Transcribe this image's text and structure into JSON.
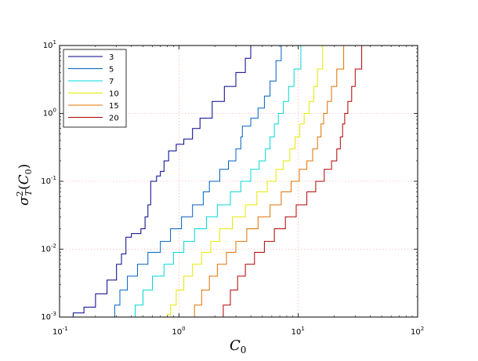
{
  "chart_data": {
    "type": "line",
    "xscale": "log",
    "yscale": "log",
    "xlim": [
      0.1,
      100
    ],
    "ylim": [
      0.001,
      10
    ],
    "xlabel_base": "C",
    "xlabel_sub": "0",
    "ylabel_html": "σ²T(C0)",
    "ylabel_sigma": "σ",
    "ylabel_sup": "2",
    "ylabel_sub": "T",
    "ylabel_arg_base": "C",
    "ylabel_arg_sub": "0",
    "x_ticks": [
      {
        "value": 0.1,
        "base": "10",
        "exp": "-1"
      },
      {
        "value": 1,
        "base": "10",
        "exp": "0"
      },
      {
        "value": 10,
        "base": "10",
        "exp": "1"
      },
      {
        "value": 100,
        "base": "10",
        "exp": "2"
      }
    ],
    "y_ticks": [
      {
        "value": 0.001,
        "base": "10",
        "exp": "-3"
      },
      {
        "value": 0.01,
        "base": "10",
        "exp": "-2"
      },
      {
        "value": 0.1,
        "base": "10",
        "exp": "-1"
      },
      {
        "value": 1,
        "base": "10",
        "exp": "0"
      },
      {
        "value": 10,
        "base": "10",
        "exp": "1"
      }
    ],
    "grid": true,
    "legend_position": "top-left",
    "series": [
      {
        "name": "3",
        "color": "#00008b",
        "points": [
          [
            0.11,
            0.001
          ],
          [
            0.13,
            0.00115
          ],
          [
            0.16,
            0.0014
          ],
          [
            0.2,
            0.0022
          ],
          [
            0.25,
            0.0035
          ],
          [
            0.3,
            0.006
          ],
          [
            0.33,
            0.0085
          ],
          [
            0.36,
            0.01
          ],
          [
            0.36,
            0.015
          ],
          [
            0.4,
            0.017
          ],
          [
            0.48,
            0.02
          ],
          [
            0.52,
            0.03
          ],
          [
            0.55,
            0.045
          ],
          [
            0.58,
            0.1
          ],
          [
            0.65,
            0.12
          ],
          [
            0.7,
            0.14
          ],
          [
            0.75,
            0.2
          ],
          [
            0.82,
            0.28
          ],
          [
            0.95,
            0.35
          ],
          [
            1.1,
            0.42
          ],
          [
            1.3,
            0.6
          ],
          [
            1.5,
            0.85
          ],
          [
            1.9,
            1.5
          ],
          [
            2.4,
            2.5
          ],
          [
            3,
            4
          ],
          [
            3.6,
            6.5
          ],
          [
            4,
            10
          ]
        ]
      },
      {
        "name": "5",
        "color": "#0060c0",
        "points": [
          [
            0.27,
            0.001
          ],
          [
            0.29,
            0.0015
          ],
          [
            0.32,
            0.0025
          ],
          [
            0.37,
            0.004
          ],
          [
            0.45,
            0.006
          ],
          [
            0.55,
            0.009
          ],
          [
            0.7,
            0.013
          ],
          [
            0.85,
            0.02
          ],
          [
            1.05,
            0.03
          ],
          [
            1.3,
            0.045
          ],
          [
            1.6,
            0.07
          ],
          [
            1.8,
            0.1
          ],
          [
            2.2,
            0.15
          ],
          [
            2.6,
            0.2
          ],
          [
            3,
            0.3
          ],
          [
            3.3,
            0.45
          ],
          [
            3.4,
            0.65
          ],
          [
            4,
            0.85
          ],
          [
            4.6,
            1.2
          ],
          [
            5.2,
            1.8
          ],
          [
            5.8,
            3
          ],
          [
            6.5,
            6
          ],
          [
            7.2,
            10
          ]
        ]
      },
      {
        "name": "7",
        "color": "#00d8d8",
        "points": [
          [
            0.4,
            0.001
          ],
          [
            0.43,
            0.0015
          ],
          [
            0.5,
            0.0025
          ],
          [
            0.6,
            0.004
          ],
          [
            0.75,
            0.006
          ],
          [
            0.9,
            0.009
          ],
          [
            1.1,
            0.013
          ],
          [
            1.35,
            0.02
          ],
          [
            1.7,
            0.03
          ],
          [
            2.1,
            0.045
          ],
          [
            2.7,
            0.07
          ],
          [
            3.3,
            0.1
          ],
          [
            4,
            0.15
          ],
          [
            4.7,
            0.2
          ],
          [
            5.3,
            0.3
          ],
          [
            5.8,
            0.45
          ],
          [
            6.3,
            0.7
          ],
          [
            6.8,
            1
          ],
          [
            7.5,
            1.5
          ],
          [
            8.3,
            2.5
          ],
          [
            9.2,
            4.5
          ],
          [
            10.5,
            10
          ]
        ]
      },
      {
        "name": "10",
        "color": "#e8e800",
        "points": [
          [
            0.65,
            0.001
          ],
          [
            0.8,
            0.0011
          ],
          [
            0.85,
            0.0015
          ],
          [
            0.95,
            0.0025
          ],
          [
            1.1,
            0.004
          ],
          [
            1.3,
            0.006
          ],
          [
            1.55,
            0.009
          ],
          [
            1.85,
            0.013
          ],
          [
            2.2,
            0.02
          ],
          [
            2.8,
            0.03
          ],
          [
            3.6,
            0.045
          ],
          [
            4.5,
            0.07
          ],
          [
            5.5,
            0.1
          ],
          [
            6.5,
            0.15
          ],
          [
            7.5,
            0.2
          ],
          [
            8.5,
            0.3
          ],
          [
            9.4,
            0.45
          ],
          [
            10.3,
            0.7
          ],
          [
            11.2,
            1
          ],
          [
            12.3,
            1.5
          ],
          [
            13.5,
            2.5
          ],
          [
            14.5,
            4.5
          ],
          [
            16,
            10
          ]
        ]
      },
      {
        "name": "15",
        "color": "#e07000",
        "points": [
          [
            1.25,
            0.001
          ],
          [
            1.35,
            0.0015
          ],
          [
            1.55,
            0.0025
          ],
          [
            1.8,
            0.004
          ],
          [
            2.1,
            0.006
          ],
          [
            2.5,
            0.009
          ],
          [
            3,
            0.013
          ],
          [
            3.7,
            0.02
          ],
          [
            4.6,
            0.03
          ],
          [
            5.8,
            0.045
          ],
          [
            7.2,
            0.07
          ],
          [
            8.7,
            0.1
          ],
          [
            10.2,
            0.15
          ],
          [
            11.8,
            0.2
          ],
          [
            13.2,
            0.3
          ],
          [
            14.5,
            0.45
          ],
          [
            15.5,
            0.7
          ],
          [
            16.3,
            1
          ],
          [
            17.5,
            1.5
          ],
          [
            19,
            2.5
          ],
          [
            21,
            4.5
          ],
          [
            24,
            10
          ]
        ]
      },
      {
        "name": "20",
        "color": "#b00000",
        "points": [
          [
            2.2,
            0.001
          ],
          [
            2.35,
            0.0015
          ],
          [
            2.7,
            0.0025
          ],
          [
            3.1,
            0.004
          ],
          [
            3.6,
            0.006
          ],
          [
            4.3,
            0.009
          ],
          [
            5.2,
            0.013
          ],
          [
            6.3,
            0.02
          ],
          [
            7.8,
            0.03
          ],
          [
            9.6,
            0.045
          ],
          [
            11.8,
            0.07
          ],
          [
            14,
            0.1
          ],
          [
            16.5,
            0.15
          ],
          [
            19,
            0.2
          ],
          [
            21,
            0.3
          ],
          [
            22.5,
            0.45
          ],
          [
            23.5,
            0.7
          ],
          [
            24.5,
            1
          ],
          [
            26,
            1.5
          ],
          [
            28,
            2.5
          ],
          [
            30,
            4.5
          ],
          [
            34,
            10
          ]
        ]
      }
    ]
  }
}
